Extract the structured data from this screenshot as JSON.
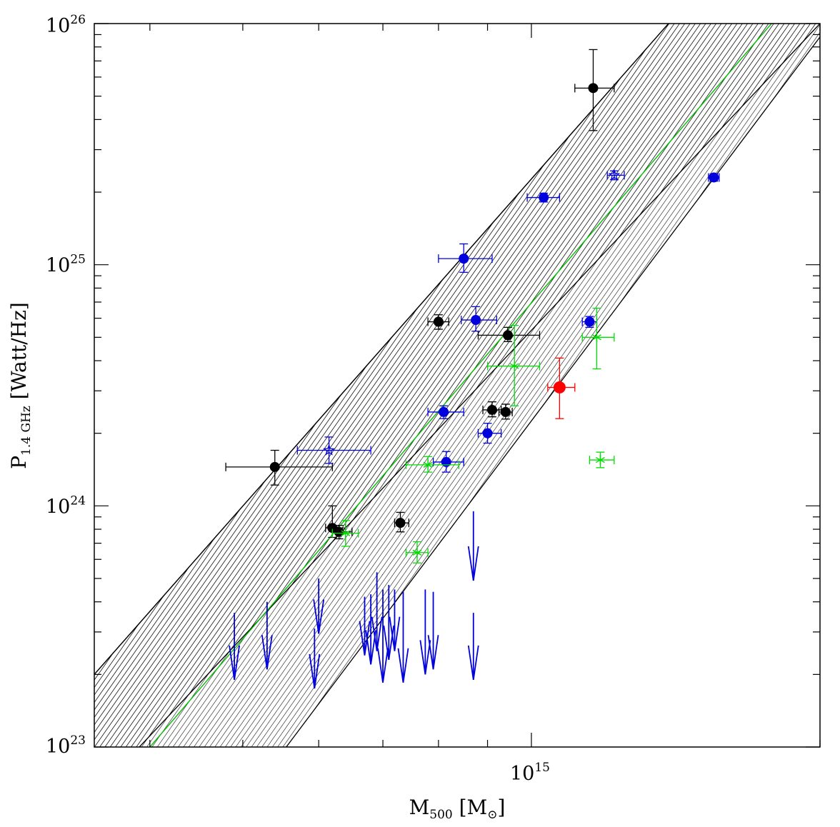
{
  "chart_data": {
    "type": "scatter",
    "xscale": "log",
    "yscale": "log",
    "xlim": [
      350000000000000,
      2000000000000000
    ],
    "ylim": [
      1e+23,
      1e+26
    ],
    "x_tick_label": {
      "base": "10",
      "exp": "15",
      "value": 1000000000000000.0
    },
    "y_tick_labels": [
      {
        "base": "10",
        "exp": "23",
        "value": 1e+23
      },
      {
        "base": "10",
        "exp": "24",
        "value": 1e+24
      },
      {
        "base": "10",
        "exp": "25",
        "value": 1e+25
      },
      {
        "base": "10",
        "exp": "26",
        "value": 1e+26
      }
    ],
    "xlabel": {
      "main": "M",
      "sub": "500",
      "unit": "[M",
      "unit_sub": "⊙",
      "close": "]"
    },
    "ylabel": {
      "main": "P",
      "sub": "1.4 GHz",
      "unit": "[Watt/Hz]"
    },
    "fit": {
      "name": "best-fit",
      "color": "#00c000",
      "points": [
        [
          400000000000000,
          1e+23
        ],
        [
          1780000000000000,
          1e+26
        ]
      ]
    },
    "bands": [
      {
        "name": "fit-uncertainty-outer",
        "upper": [
          [
            350000000000000,
            2e+23
          ],
          [
            1390000000000000,
            1e+26
          ]
        ],
        "lower": [
          [
            555000000000000,
            1e+23
          ],
          [
            2000000000000000,
            8.8e+25
          ]
        ]
      },
      {
        "name": "fit-uncertainty-inner",
        "upper": [
          [
            350000000000000,
            2e+23
          ],
          [
            1390000000000000,
            1e+26
          ]
        ],
        "lower": [
          [
            390000000000000,
            1e+23
          ],
          [
            2000000000000000,
            1e+26
          ]
        ]
      }
    ],
    "series": [
      {
        "name": "black-dots",
        "color": "#000000",
        "marker": "dot",
        "points": [
          {
            "x": 1160000000000000,
            "y": 5.4e+25,
            "xerr": [
              1110000000000000,
              1220000000000000
            ],
            "yerr": [
              3.6e+25,
              7.8e+25
            ]
          },
          {
            "x": 540000000000000,
            "y": 1.45e+24,
            "xerr": [
              480000000000000,
              620000000000000
            ],
            "yerr": [
              1.22e+24,
              1.7e+24
            ]
          },
          {
            "x": 620000000000000,
            "y": 8.1e+23,
            "xerr": [
              610000000000000,
              640000000000000
            ],
            "yerr": [
              7.4e+23,
              1e+24
            ]
          },
          {
            "x": 630000000000000,
            "y": 7.8e+23,
            "xerr": [
              620000000000000,
              650000000000000
            ],
            "yerr": [
              7.3e+23,
              8.3e+23
            ]
          },
          {
            "x": 730000000000000,
            "y": 8.5e+23,
            "xerr": [
              720000000000000,
              745000000000000
            ],
            "yerr": [
              7.8e+23,
              9.4e+23
            ]
          },
          {
            "x": 800000000000000,
            "y": 5.8e+24,
            "xerr": [
              780000000000000,
              820000000000000
            ],
            "yerr": [
              5.4e+24,
              6.2e+24
            ]
          },
          {
            "x": 945000000000000,
            "y": 5.1e+24,
            "xerr": [
              880000000000000,
              1020000000000000
            ],
            "yerr": [
              4.8e+24,
              5.5e+24
            ]
          },
          {
            "x": 910000000000000,
            "y": 2.5e+24,
            "xerr": [
              890000000000000,
              930000000000000
            ],
            "yerr": [
              2.34e+24,
              2.7e+24
            ]
          },
          {
            "x": 940000000000000,
            "y": 2.45e+24,
            "xerr": [
              925000000000000,
              955000000000000
            ],
            "yerr": [
              2.29e+24,
              2.64e+24
            ]
          }
        ]
      },
      {
        "name": "blue-dots",
        "color": "#0000dd",
        "marker": "dot",
        "points": [
          {
            "x": 1030000000000000,
            "y": 1.9e+25,
            "xerr": [
              990000000000000,
              1070000000000000
            ],
            "yerr": [
              1.82e+25,
              1.98e+25
            ]
          },
          {
            "x": 850000000000000,
            "y": 1.06e+25,
            "xerr": [
              800000000000000,
              910000000000000
            ],
            "yerr": [
              9.3e+24,
              1.22e+25
            ]
          },
          {
            "x": 875000000000000,
            "y": 5.9e+24,
            "xerr": [
              845000000000000,
              920000000000000
            ],
            "yerr": [
              5.3e+24,
              6.7e+24
            ]
          },
          {
            "x": 1150000000000000,
            "y": 5.8e+24,
            "xerr": [
              1130000000000000,
              1170000000000000
            ],
            "yerr": [
              5.5e+24,
              6.1e+24
            ]
          },
          {
            "x": 1550000000000000,
            "y": 2.3e+25,
            "xerr": [
              1530000000000000,
              1570000000000000
            ],
            "yerr": [
              2.22e+25,
              2.38e+25
            ]
          },
          {
            "x": 810000000000000,
            "y": 2.45e+24,
            "xerr": [
              780000000000000,
              850000000000000
            ],
            "yerr": [
              2.3e+24,
              2.6e+24
            ]
          },
          {
            "x": 900000000000000,
            "y": 2e+24,
            "xerr": [
              880000000000000,
              930000000000000
            ],
            "yerr": [
              1.82e+24,
              2.2e+24
            ]
          },
          {
            "x": 815000000000000,
            "y": 1.52e+24,
            "xerr": [
              790000000000000,
              850000000000000
            ],
            "yerr": [
              1.38e+24,
              1.68e+24
            ]
          }
        ]
      },
      {
        "name": "blue-stars",
        "color": "#0000dd",
        "marker": "star",
        "points": [
          {
            "x": 615000000000000,
            "y": 1.7e+24,
            "xerr": [
              570000000000000,
              680000000000000
            ],
            "yerr": [
              1.5e+24,
              1.93e+24
            ]
          },
          {
            "x": 1220000000000000,
            "y": 2.35e+25,
            "xerr": [
              1200000000000000,
              1250000000000000
            ],
            "yerr": [
              2.25e+25,
              2.45e+25
            ]
          }
        ]
      },
      {
        "name": "green-stars",
        "color": "#00dd00",
        "marker": "asterisk",
        "points": [
          {
            "x": 960000000000000,
            "y": 3.8e+24,
            "xerr": [
              900000000000000,
              1020000000000000
            ],
            "yerr": [
              2.6e+24,
              5.6e+24
            ]
          },
          {
            "x": 1170000000000000,
            "y": 5e+24,
            "xerr": [
              1130000000000000,
              1220000000000000
            ],
            "yerr": [
              3.7e+24,
              6.6e+24
            ]
          },
          {
            "x": 1180000000000000,
            "y": 1.55e+24,
            "xerr": [
              1150000000000000,
              1220000000000000
            ],
            "yerr": [
              1.44e+24,
              1.67e+24
            ]
          },
          {
            "x": 780000000000000,
            "y": 1.48e+24,
            "xerr": [
              740000000000000,
              840000000000000
            ],
            "yerr": [
              1.38e+24,
              1.6e+24
            ]
          },
          {
            "x": 760000000000000,
            "y": 6.4e+23,
            "xerr": [
              740000000000000,
              780000000000000
            ],
            "yerr": [
              5.8e+23,
              7.1e+23
            ]
          },
          {
            "x": 640000000000000,
            "y": 7.7e+23,
            "xerr": [
              620000000000000,
              660000000000000
            ],
            "yerr": [
              6.8e+23,
              8.7e+23
            ]
          }
        ]
      },
      {
        "name": "red-dot",
        "color": "#ff0000",
        "marker": "dot",
        "points": [
          {
            "x": 1070000000000000,
            "y": 3.1e+24,
            "xerr": [
              1040000000000000,
              1110000000000000
            ],
            "yerr": [
              2.3e+24,
              4.1e+24
            ]
          }
        ]
      }
    ],
    "upper_limits": {
      "name": "blue-arrows",
      "color": "#0000dd",
      "points": [
        {
          "x": 490000000000000,
          "y": 3.6e+23,
          "y_end": 1.9e+23
        },
        {
          "x": 530000000000000,
          "y": 4e+23,
          "y_end": 2.1e+23
        },
        {
          "x": 600000000000000,
          "y": 5e+23,
          "y_end": 2.95e+23
        },
        {
          "x": 594000000000000,
          "y": 3.1e+23,
          "y_end": 1.75e+23
        },
        {
          "x": 670000000000000,
          "y": 4.2e+23,
          "y_end": 2.4e+23
        },
        {
          "x": 680000000000000,
          "y": 4.3e+23,
          "y_end": 2.2e+23
        },
        {
          "x": 690000000000000,
          "y": 5.3e+23,
          "y_end": 2.5e+23
        },
        {
          "x": 700000000000000,
          "y": 4.5e+23,
          "y_end": 1.85e+23
        },
        {
          "x": 710000000000000,
          "y": 4.7e+23,
          "y_end": 2.3e+23
        },
        {
          "x": 720000000000000,
          "y": 4.5e+23,
          "y_end": 2.5e+23
        },
        {
          "x": 735000000000000,
          "y": 4.4e+23,
          "y_end": 1.85e+23
        },
        {
          "x": 775000000000000,
          "y": 4.5e+23,
          "y_end": 2e+23
        },
        {
          "x": 790000000000000,
          "y": 4.4e+23,
          "y_end": 2.1e+23
        },
        {
          "x": 870000000000000,
          "y": 9.5e+23,
          "y_end": 4.9e+23
        },
        {
          "x": 870000000000000,
          "y": 3.6e+23,
          "y_end": 1.9e+23
        }
      ]
    }
  }
}
